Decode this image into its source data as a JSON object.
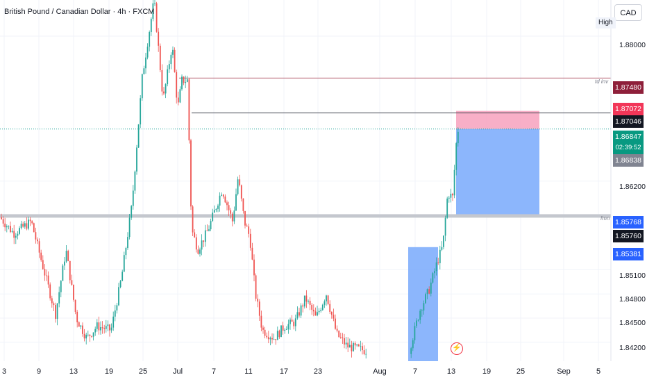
{
  "header": {
    "title": "British Pound / Canadian Dollar · 4h · FXCM",
    "currency_button": "CAD",
    "high_label": "High"
  },
  "colors": {
    "up": "#26a69a",
    "down": "#ef5350",
    "zone_blue": "#7faefc",
    "zone_pink": "#f7a1bd",
    "line_red": "#b35a6a",
    "line_dark": "#4a4d57",
    "dotted_green": "#26a69a",
    "band_gray": "#c4c7ce"
  },
  "price_axis": {
    "ticks": [
      "1.88000",
      "1.86200",
      "1.85100",
      "1.84800",
      "1.84500",
      "1.84200"
    ]
  },
  "price_tags": [
    {
      "value": "1.87480",
      "bg": "#8e1f3a"
    },
    {
      "value": "1.87072",
      "bg": "#f23658"
    },
    {
      "value": "1.87046",
      "bg": "#131722"
    },
    {
      "value": "1.86847",
      "countdown": "02:39:52",
      "bg": "#089981"
    },
    {
      "value": "1.86838",
      "bg": "#808491"
    },
    {
      "value": "1.85768",
      "bg": "#2962ff"
    },
    {
      "value": "1.85760",
      "bg": "#131722"
    },
    {
      "value": "1.85381",
      "bg": "#2962ff"
    }
  ],
  "annotations": {
    "td_inv": "td inv",
    "fmn": "fmn"
  },
  "time_axis": {
    "labels": [
      "3",
      "9",
      "13",
      "19",
      "25",
      "Jul",
      "7",
      "11",
      "17",
      "23",
      "Aug",
      "7",
      "13",
      "19",
      "25",
      "Sep",
      "5"
    ]
  },
  "chart_data": {
    "type": "candlestick",
    "title": "British Pound / Canadian Dollar · 4h · FXCM",
    "symbol": "GBPCAD",
    "timeframe": "4h",
    "source": "FXCM",
    "current_price": 1.86847,
    "levels": [
      {
        "label": "td inv",
        "price": 1.8748
      },
      {
        "label": "",
        "price": 1.87046
      },
      {
        "label": "fmn",
        "price": 1.85768
      }
    ],
    "zones": [
      {
        "kind": "stop",
        "from": 1.86847,
        "to": 1.87072
      },
      {
        "kind": "target",
        "from": 1.85768,
        "to": 1.86847
      },
      {
        "kind": "range",
        "from": 1.842,
        "to": 1.85381
      }
    ],
    "ohlc_approx": [
      {
        "date": "Jun 3",
        "open": 1.8575,
        "high": 1.859,
        "low": 1.854,
        "close": 1.8555
      },
      {
        "date": "Jun 9",
        "open": 1.8555,
        "high": 1.8575,
        "low": 1.8465,
        "close": 1.848
      },
      {
        "date": "Jun 13",
        "open": 1.848,
        "high": 1.8525,
        "low": 1.842,
        "close": 1.844
      },
      {
        "date": "Jun 19",
        "open": 1.844,
        "high": 1.859,
        "low": 1.842,
        "close": 1.858
      },
      {
        "date": "Jun 25",
        "open": 1.858,
        "high": 1.882,
        "low": 1.857,
        "close": 1.879
      },
      {
        "date": "Jul 1",
        "open": 1.879,
        "high": 1.881,
        "low": 1.869,
        "close": 1.8745
      },
      {
        "date": "Jul 7",
        "open": 1.8745,
        "high": 1.875,
        "low": 1.853,
        "close": 1.857
      },
      {
        "date": "Jul 11",
        "open": 1.857,
        "high": 1.863,
        "low": 1.854,
        "close": 1.859
      },
      {
        "date": "Jul 17",
        "open": 1.859,
        "high": 1.86,
        "low": 1.842,
        "close": 1.844
      },
      {
        "date": "Jul 23",
        "open": 1.844,
        "high": 1.8485,
        "low": 1.841,
        "close": 1.843
      },
      {
        "date": "Aug 7",
        "open": 1.841,
        "high": 1.85,
        "low": 1.84,
        "close": 1.849
      },
      {
        "date": "Aug 13",
        "open": 1.849,
        "high": 1.869,
        "low": 1.848,
        "close": 1.8685
      }
    ]
  }
}
